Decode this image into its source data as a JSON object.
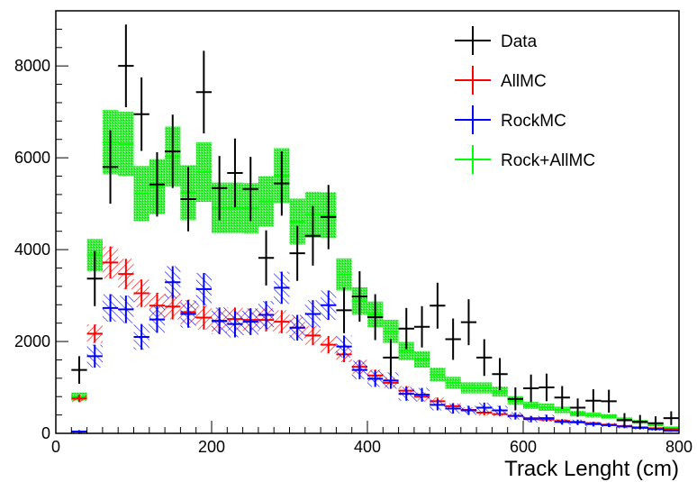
{
  "chart_data": {
    "type": "scatter",
    "title": "",
    "xlabel": "Track Lenght (cm)",
    "ylabel": "",
    "xlim": [
      0,
      800
    ],
    "ylim": [
      0,
      9200
    ],
    "x_ticks": [
      0,
      200,
      400,
      600,
      800
    ],
    "y_ticks": [
      0,
      2000,
      4000,
      6000,
      8000
    ],
    "x_tick_labels": [
      "0",
      "200",
      "400",
      "600",
      "800"
    ],
    "y_tick_labels": [
      "0",
      "2000",
      "4000",
      "6000",
      "8000"
    ],
    "grid": false,
    "legend_position": "top-right",
    "bin_width": 20,
    "bin_centers": [
      30,
      50,
      70,
      90,
      110,
      130,
      150,
      170,
      190,
      210,
      230,
      250,
      270,
      290,
      310,
      330,
      350,
      370,
      390,
      410,
      430,
      450,
      470,
      490,
      510,
      530,
      550,
      570,
      590,
      610,
      630,
      650,
      670,
      690,
      710,
      730,
      750,
      770,
      790
    ],
    "series": [
      {
        "name": "Data",
        "color": "#000000",
        "style": "errorbar",
        "values": [
          1380,
          3370,
          5800,
          8000,
          6950,
          5420,
          6140,
          5100,
          7430,
          5340,
          5670,
          5320,
          3820,
          5440,
          3920,
          4300,
          4710,
          2680,
          2980,
          2530,
          1650,
          2280,
          2320,
          2780,
          2050,
          2420,
          1650,
          1290,
          750,
          980,
          1000,
          780,
          560,
          710,
          700,
          290,
          250,
          220,
          330
        ],
        "errors": [
          300,
          600,
          800,
          900,
          800,
          700,
          800,
          700,
          900,
          700,
          750,
          700,
          600,
          700,
          600,
          650,
          700,
          500,
          550,
          500,
          400,
          450,
          450,
          500,
          450,
          500,
          400,
          350,
          250,
          300,
          300,
          250,
          200,
          250,
          250,
          150,
          150,
          150,
          150
        ]
      },
      {
        "name": "AllMC",
        "color": "#ff0000",
        "style": "hatched",
        "values": [
          760,
          2170,
          3720,
          3470,
          3050,
          2780,
          2760,
          2640,
          2520,
          2440,
          2490,
          2470,
          2470,
          2430,
          2300,
          2130,
          1930,
          1720,
          1450,
          1260,
          1100,
          930,
          800,
          700,
          590,
          510,
          450,
          420,
          380,
          330,
          300,
          270,
          250,
          220,
          190,
          160,
          130,
          110,
          90
        ],
        "errors": [
          80,
          200,
          350,
          330,
          300,
          280,
          280,
          270,
          260,
          250,
          250,
          250,
          250,
          250,
          230,
          210,
          190,
          170,
          150,
          130,
          110,
          100,
          90,
          80,
          70,
          60,
          60,
          50,
          50,
          40,
          40,
          35,
          35,
          30,
          30,
          25,
          20,
          20,
          15
        ]
      },
      {
        "name": "RockMC",
        "color": "#0000ff",
        "style": "hatched",
        "values": [
          40,
          1680,
          2730,
          2700,
          2100,
          2480,
          3290,
          2600,
          3140,
          2450,
          2380,
          2430,
          2580,
          3170,
          2300,
          2600,
          2790,
          1890,
          1380,
          1190,
          1150,
          860,
          840,
          620,
          540,
          500,
          560,
          500,
          380,
          310,
          330,
          250,
          240,
          200,
          180,
          150,
          120,
          90,
          60
        ],
        "errors": [
          30,
          250,
          300,
          300,
          280,
          290,
          350,
          300,
          350,
          290,
          290,
          290,
          300,
          350,
          280,
          300,
          320,
          240,
          200,
          180,
          180,
          150,
          150,
          120,
          110,
          100,
          110,
          100,
          80,
          70,
          75,
          60,
          60,
          50,
          45,
          40,
          35,
          30,
          25
        ]
      },
      {
        "name": "Rock+AllMC",
        "color": "#00ff00",
        "fill_color": "#22dd22",
        "style": "box",
        "values": [
          800,
          3880,
          6340,
          6300,
          5220,
          5370,
          6030,
          5240,
          5690,
          4910,
          4910,
          4900,
          5050,
          5610,
          4610,
          4760,
          4750,
          3460,
          2880,
          2590,
          2220,
          1790,
          1610,
          1280,
          1100,
          990,
          990,
          910,
          720,
          610,
          570,
          510,
          430,
          400,
          370,
          300,
          250,
          190,
          120
        ],
        "errors": [
          90,
          350,
          700,
          700,
          600,
          600,
          650,
          600,
          650,
          550,
          550,
          550,
          550,
          600,
          500,
          500,
          500,
          350,
          300,
          280,
          250,
          200,
          180,
          150,
          130,
          120,
          120,
          110,
          90,
          80,
          80,
          70,
          60,
          55,
          50,
          45,
          40,
          35,
          30
        ]
      }
    ]
  }
}
